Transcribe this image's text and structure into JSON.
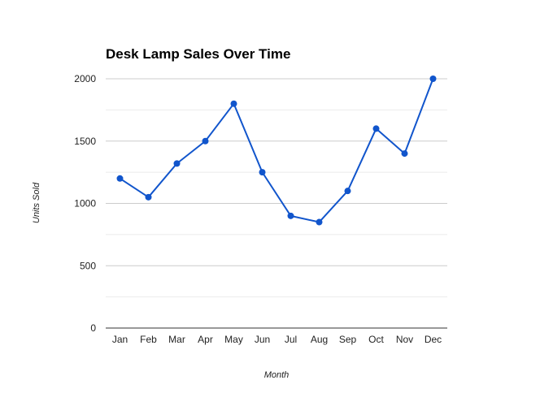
{
  "chart_data": {
    "type": "line",
    "title": "Desk Lamp Sales Over Time",
    "xlabel": "Month",
    "ylabel": "Units Sold",
    "categories": [
      "Jan",
      "Feb",
      "Mar",
      "Apr",
      "May",
      "Jun",
      "Jul",
      "Aug",
      "Sep",
      "Oct",
      "Nov",
      "Dec"
    ],
    "series": [
      {
        "values": [
          1200,
          1050,
          1320,
          1500,
          1800,
          1250,
          900,
          850,
          1100,
          1600,
          1400,
          2000
        ]
      }
    ],
    "ylim": [
      0,
      2000
    ],
    "yticks": [
      "0",
      "500",
      "1000",
      "1500",
      "2000"
    ],
    "grid": true,
    "legend": "none",
    "colors": {
      "line": "#1155cc",
      "major_grid": "#cccccc",
      "minor_grid": "#ebebeb",
      "baseline": "#333333"
    }
  }
}
